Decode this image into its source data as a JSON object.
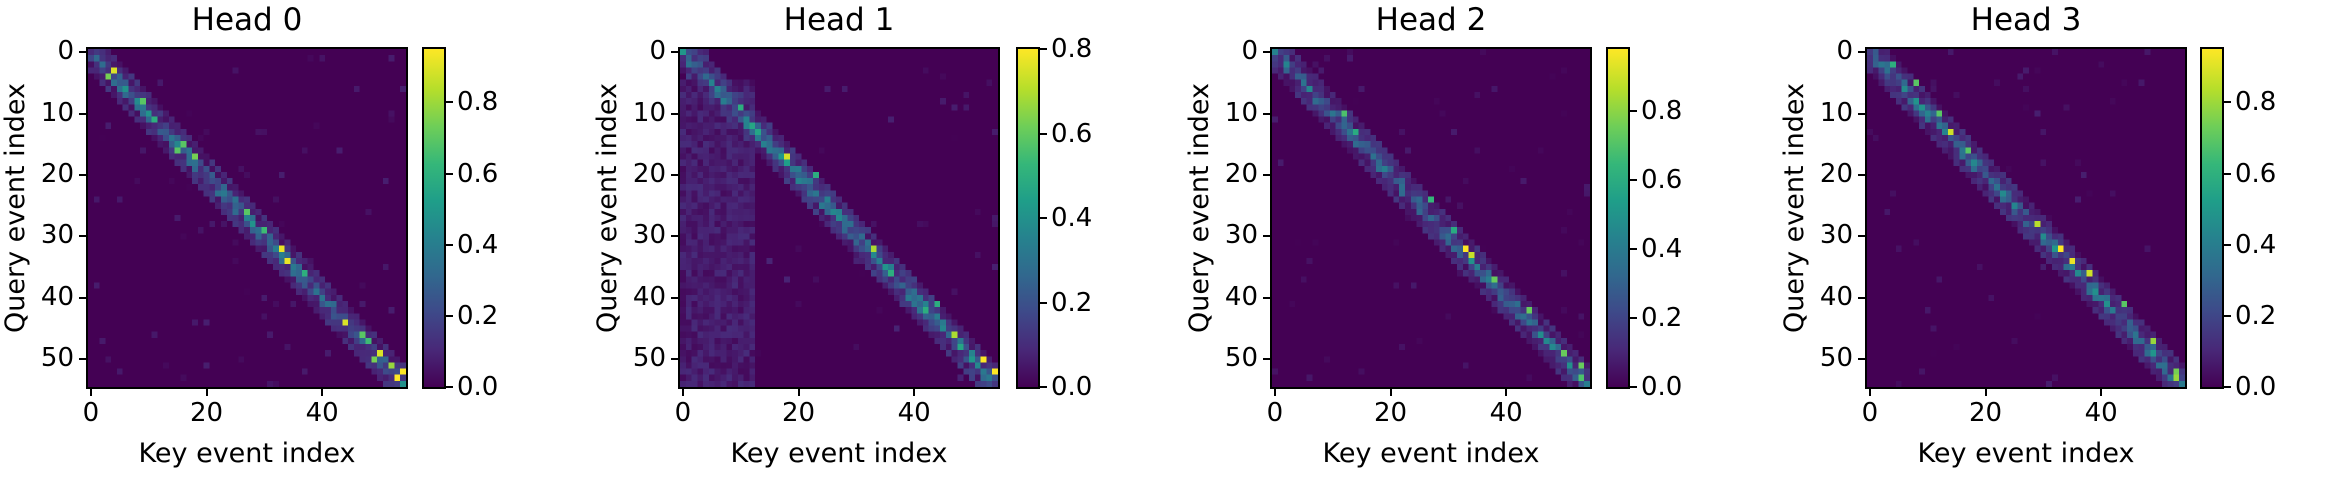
{
  "figure": {
    "panels": [
      {
        "title": "Head 0",
        "xlabel": "Key event index",
        "ylabel": "Query event index",
        "cbar_max": 0.95
      },
      {
        "title": "Head 1",
        "xlabel": "Key event index",
        "ylabel": "Query event index",
        "cbar_max": 0.8
      },
      {
        "title": "Head 2",
        "xlabel": "Key event index",
        "ylabel": "Query event index",
        "cbar_max": 0.98
      },
      {
        "title": "Head 3",
        "xlabel": "Key event index",
        "ylabel": "Query event index",
        "cbar_max": 0.95
      }
    ],
    "xticks": [
      "0",
      "20",
      "40"
    ],
    "yticks": [
      "0",
      "10",
      "20",
      "30",
      "40",
      "50"
    ],
    "cticks": [
      "0.0",
      "0.2",
      "0.4",
      "0.6",
      "0.8"
    ]
  },
  "chart_data": [
    {
      "type": "heatmap",
      "title": "Head 0",
      "xlabel": "Key event index",
      "ylabel": "Query event index",
      "size": [
        55,
        55
      ],
      "xticks": [
        0,
        20,
        40
      ],
      "yticks": [
        0,
        10,
        20,
        30,
        40,
        50
      ],
      "colormap": "viridis",
      "colorbar_range": [
        0.0,
        0.95
      ],
      "colorbar_ticks": [
        0.0,
        0.2,
        0.4,
        0.6,
        0.8
      ],
      "description": "Near-diagonal attention band (local attention); strong peaks near diagonal, max ~0.95",
      "peaks": [
        [
          3,
          4,
          0.9
        ],
        [
          4,
          3,
          0.75
        ],
        [
          8,
          9,
          0.7
        ],
        [
          11,
          11,
          0.6
        ],
        [
          15,
          16,
          0.7
        ],
        [
          16,
          15,
          0.7
        ],
        [
          17,
          18,
          0.75
        ],
        [
          26,
          27,
          0.7
        ],
        [
          29,
          30,
          0.65
        ],
        [
          32,
          33,
          0.92
        ],
        [
          34,
          34,
          0.92
        ],
        [
          36,
          37,
          0.6
        ],
        [
          44,
          44,
          0.9
        ],
        [
          46,
          47,
          0.7
        ],
        [
          47,
          48,
          0.65
        ],
        [
          49,
          50,
          0.9
        ],
        [
          50,
          49,
          0.75
        ],
        [
          51,
          52,
          0.8
        ],
        [
          52,
          54,
          0.95
        ],
        [
          53,
          53,
          0.95
        ]
      ]
    },
    {
      "type": "heatmap",
      "title": "Head 1",
      "xlabel": "Key event index",
      "ylabel": "Query event index",
      "size": [
        55,
        55
      ],
      "xticks": [
        0,
        20,
        40
      ],
      "yticks": [
        0,
        10,
        20,
        30,
        40,
        50
      ],
      "colormap": "viridis",
      "colorbar_range": [
        0.0,
        0.8
      ],
      "colorbar_ticks": [
        0.0,
        0.2,
        0.4,
        0.6,
        0.8
      ],
      "description": "Diagonal band with diffuse attention to early keys (columns 0-12) across all queries",
      "peaks": [
        [
          9,
          10,
          0.5
        ],
        [
          17,
          18,
          0.75
        ],
        [
          20,
          23,
          0.5
        ],
        [
          32,
          33,
          0.7
        ],
        [
          36,
          36,
          0.5
        ],
        [
          41,
          44,
          0.5
        ],
        [
          46,
          47,
          0.7
        ],
        [
          50,
          52,
          0.8
        ],
        [
          52,
          54,
          0.8
        ]
      ]
    },
    {
      "type": "heatmap",
      "title": "Head 2",
      "xlabel": "Key event index",
      "ylabel": "Query event index",
      "size": [
        55,
        55
      ],
      "xticks": [
        0,
        20,
        40
      ],
      "yticks": [
        0,
        10,
        20,
        30,
        40,
        50
      ],
      "colormap": "viridis",
      "colorbar_range": [
        0.0,
        0.98
      ],
      "colorbar_ticks": [
        0.0,
        0.2,
        0.4,
        0.6,
        0.8
      ],
      "description": "Sharp diagonal band, slightly wider in middle region; strongest peaks at query 32-33",
      "peaks": [
        [
          10,
          12,
          0.7
        ],
        [
          13,
          14,
          0.6
        ],
        [
          24,
          27,
          0.65
        ],
        [
          29,
          31,
          0.6
        ],
        [
          32,
          33,
          0.98
        ],
        [
          33,
          34,
          0.9
        ],
        [
          37,
          38,
          0.75
        ],
        [
          42,
          44,
          0.75
        ],
        [
          49,
          50,
          0.75
        ],
        [
          51,
          53,
          0.75
        ],
        [
          53,
          53,
          0.7
        ]
      ]
    },
    {
      "type": "heatmap",
      "title": "Head 3",
      "xlabel": "Key event index",
      "ylabel": "Query event index",
      "size": [
        55,
        55
      ],
      "xticks": [
        0,
        20,
        40
      ],
      "yticks": [
        0,
        10,
        20,
        30,
        40,
        50
      ],
      "colormap": "viridis",
      "colorbar_range": [
        0.0,
        0.95
      ],
      "colorbar_ticks": [
        0.0,
        0.2,
        0.4,
        0.6,
        0.8
      ],
      "description": "Diagonal band with several strong yellow peaks",
      "peaks": [
        [
          2,
          4,
          0.6
        ],
        [
          5,
          8,
          0.7
        ],
        [
          10,
          12,
          0.7
        ],
        [
          13,
          14,
          0.88
        ],
        [
          16,
          17,
          0.7
        ],
        [
          28,
          29,
          0.85
        ],
        [
          32,
          33,
          0.95
        ],
        [
          34,
          35,
          0.92
        ],
        [
          36,
          38,
          0.88
        ],
        [
          41,
          44,
          0.7
        ],
        [
          47,
          49,
          0.8
        ],
        [
          52,
          53,
          0.75
        ],
        [
          53,
          53,
          0.8
        ]
      ]
    }
  ]
}
